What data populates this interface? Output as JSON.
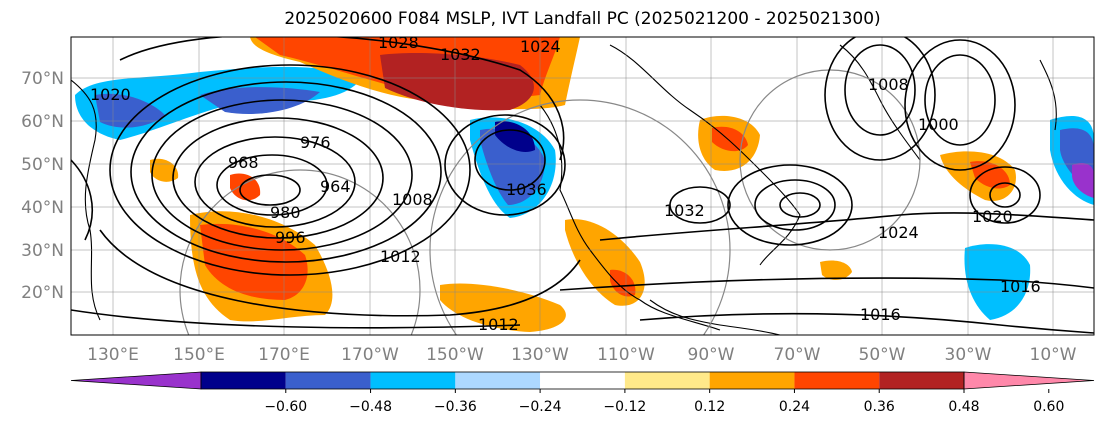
{
  "title": "2025020600 F084 MSLP, IVT Landfall PC (2025021200 - 2025021300)",
  "map": {
    "lat_labels": [
      "70°N",
      "60°N",
      "50°N",
      "40°N",
      "30°N",
      "20°N"
    ],
    "lon_labels": [
      "130°E",
      "150°E",
      "170°E",
      "170°W",
      "150°W",
      "130°W",
      "110°W",
      "90°W",
      "70°W",
      "50°W",
      "30°W",
      "10°W"
    ],
    "isobar_labels": [
      "1028",
      "1032",
      "1024",
      "968",
      "976",
      "964",
      "980",
      "996",
      "1008",
      "1012",
      "1036",
      "1032",
      "1024",
      "1020",
      "1016",
      "1012",
      "1008",
      "1000",
      "1020",
      "1016"
    ]
  },
  "colorbar": {
    "ticks": [
      "−0.60",
      "−0.48",
      "−0.36",
      "−0.24",
      "−0.12",
      "0.12",
      "0.24",
      "0.36",
      "0.48",
      "0.60"
    ],
    "colors": [
      "#9932cc",
      "#00008b",
      "#3a5fcd",
      "#00bfff",
      "#add8ff",
      "#ffffff",
      "#ffe98a",
      "#ffa500",
      "#ff4500",
      "#b22222",
      "#ff88aa"
    ]
  }
}
